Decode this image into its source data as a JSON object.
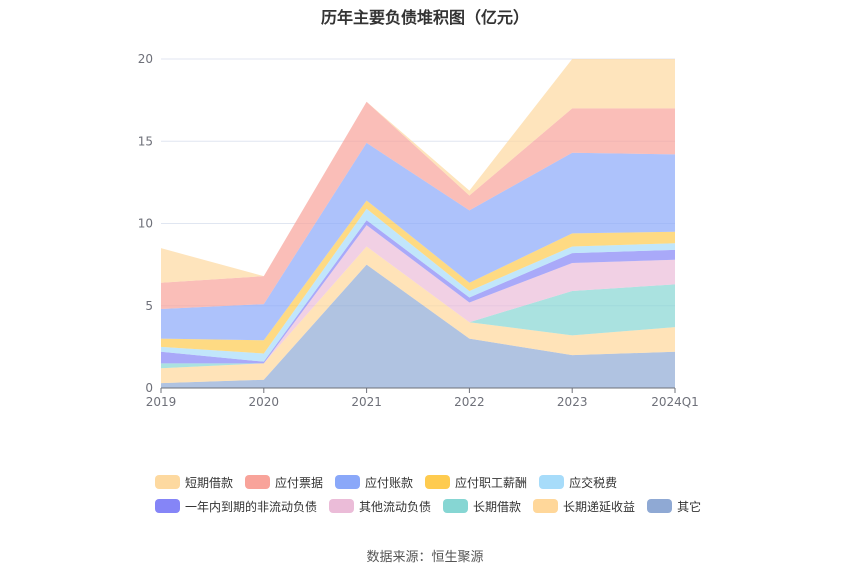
{
  "chart_data": {
    "type": "area",
    "title": "历年主要负债堆积图（亿元）",
    "categories": [
      "2019",
      "2020",
      "2021",
      "2022",
      "2023",
      "2024Q1"
    ],
    "yticks": [
      0,
      5,
      10,
      15,
      20
    ],
    "ylim": [
      0,
      20
    ],
    "stacked": true,
    "grid": true,
    "legend_position": "bottom",
    "series": [
      {
        "name": "其它",
        "color": "#8fa9d4",
        "values": [
          0.3,
          0.5,
          7.5,
          3.0,
          2.0,
          2.2
        ]
      },
      {
        "name": "长期递延收益",
        "color": "#ffd79a",
        "values": [
          0.9,
          1.0,
          1.1,
          1.0,
          1.2,
          1.5
        ]
      },
      {
        "name": "长期借款",
        "color": "#86d6d3",
        "values": [
          0.3,
          0.0,
          0.0,
          0.0,
          2.7,
          2.6
        ]
      },
      {
        "name": "其他流动负债",
        "color": "#ebbcd8",
        "values": [
          0.0,
          0.0,
          1.3,
          1.2,
          1.7,
          1.5
        ]
      },
      {
        "name": "一年内到期的非流动负债",
        "color": "#8585f7",
        "values": [
          0.7,
          0.1,
          0.3,
          0.3,
          0.6,
          0.6
        ]
      },
      {
        "name": "应交税费",
        "color": "#a7dcfa",
        "values": [
          0.3,
          0.5,
          0.7,
          0.4,
          0.4,
          0.4
        ]
      },
      {
        "name": "应付职工薪酬",
        "color": "#fecb4f",
        "values": [
          0.5,
          0.8,
          0.5,
          0.5,
          0.8,
          0.7
        ]
      },
      {
        "name": "应付账款",
        "color": "#8aa8f9",
        "values": [
          1.8,
          2.2,
          3.5,
          4.4,
          4.9,
          4.7
        ]
      },
      {
        "name": "应付票据",
        "color": "#f8a39a",
        "values": [
          1.6,
          1.7,
          2.5,
          0.9,
          2.7,
          2.8
        ]
      },
      {
        "name": "短期借款",
        "color": "#fdd9a0",
        "values": [
          2.1,
          0.0,
          0.0,
          0.3,
          3.0,
          3.0
        ]
      }
    ]
  },
  "legend": {
    "row1": [
      {
        "name": "短期借款",
        "color": "#fdd9a0"
      },
      {
        "name": "应付票据",
        "color": "#f8a39a"
      },
      {
        "name": "应付账款",
        "color": "#8aa8f9"
      },
      {
        "name": "应付职工薪酬",
        "color": "#fecb4f"
      },
      {
        "name": "应交税费",
        "color": "#a7dcfa"
      }
    ],
    "row2": [
      {
        "name": "一年内到期的非流动负债",
        "color": "#8585f7"
      },
      {
        "name": "其他流动负债",
        "color": "#ebbcd8"
      },
      {
        "name": "长期借款",
        "color": "#86d6d3"
      },
      {
        "name": "长期递延收益",
        "color": "#ffd79a"
      },
      {
        "name": "其它",
        "color": "#8fa9d4"
      }
    ]
  },
  "source": "数据来源：恒生聚源"
}
